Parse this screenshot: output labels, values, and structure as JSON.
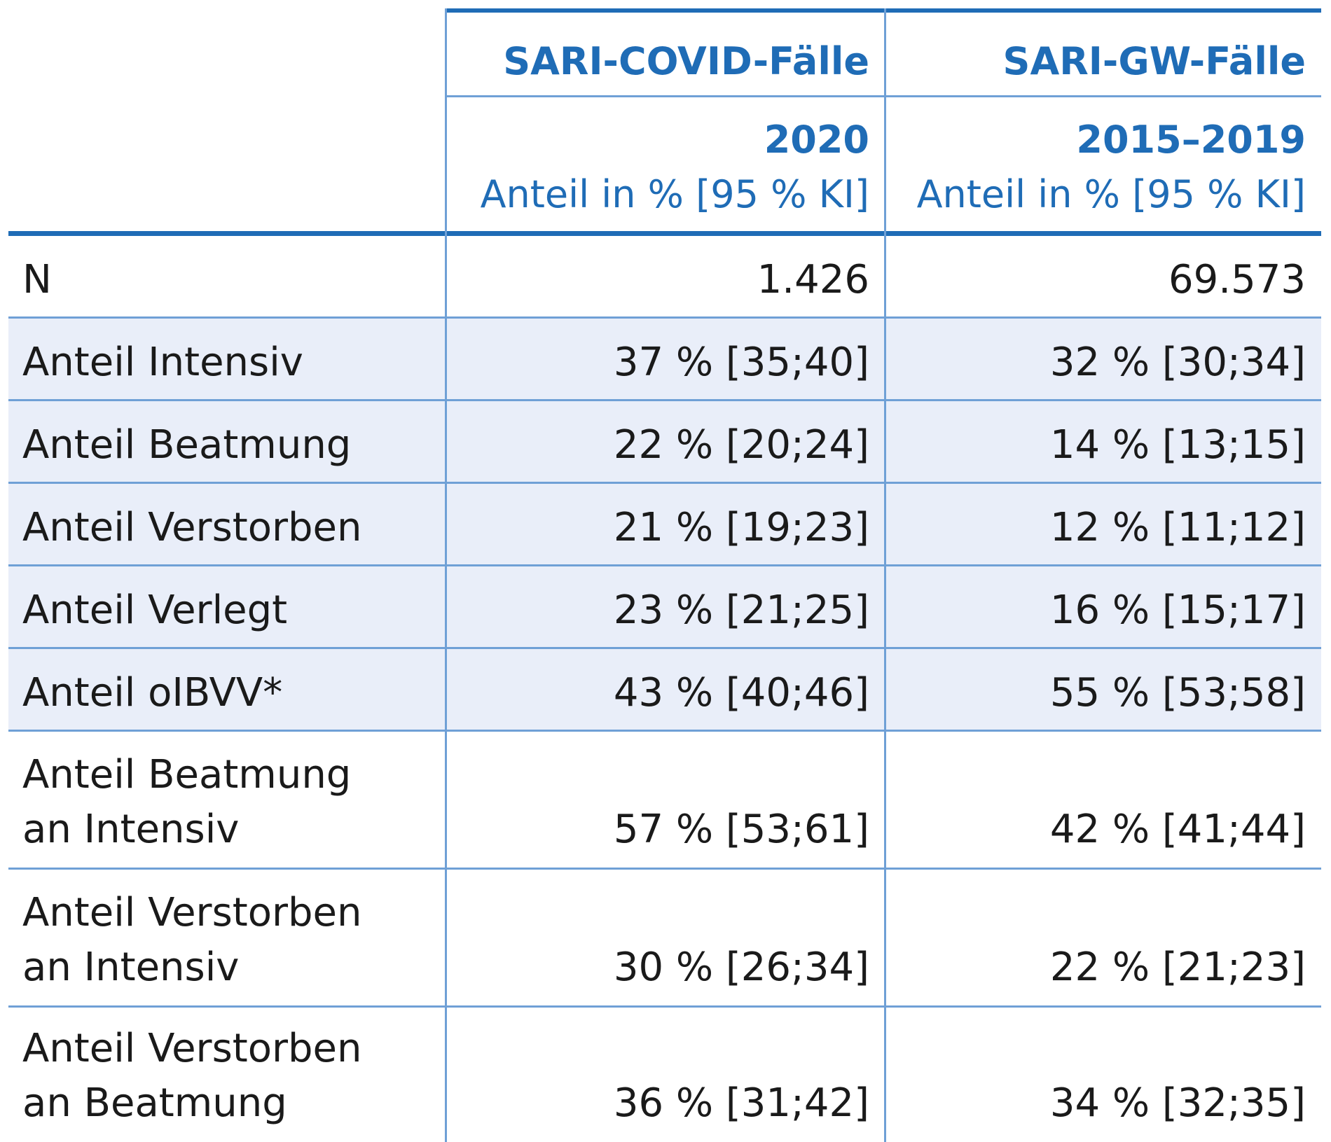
{
  "header": {
    "col1_title": "SARI-COVID-Fälle",
    "col2_title": "SARI-GW-Fälle",
    "col1_year": "2020",
    "col2_year": "2015–2019",
    "col1_share": "Anteil in % [95 % KI]",
    "col2_share": "Anteil in % [95 % KI]"
  },
  "rows": [
    {
      "label_line1": "N",
      "label_line2": "",
      "c1": "1.426",
      "c2": "69.573"
    },
    {
      "label_line1": "Anteil Intensiv",
      "label_line2": "",
      "c1": "37 % [35;40]",
      "c2": "32 % [30;34]"
    },
    {
      "label_line1": "Anteil Beatmung",
      "label_line2": "",
      "c1": "22 % [20;24]",
      "c2": "14 % [13;15]"
    },
    {
      "label_line1": "Anteil Verstorben",
      "label_line2": "",
      "c1": "21 % [19;23]",
      "c2": "12 % [11;12]"
    },
    {
      "label_line1": "Anteil Verlegt",
      "label_line2": "",
      "c1": "23 % [21;25]",
      "c2": "16 % [15;17]"
    },
    {
      "label_line1": "Anteil oIBVV*",
      "label_line2": "",
      "c1": "43 % [40;46]",
      "c2": "55 % [53;58]"
    },
    {
      "label_line1": "Anteil Beatmung",
      "label_line2": "an Intensiv",
      "c1": "57 % [53;61]",
      "c2": "42 % [41;44]"
    },
    {
      "label_line1": "Anteil Verstorben",
      "label_line2": "an Intensiv",
      "c1": "30 % [26;34]",
      "c2": "22 % [21;23]"
    },
    {
      "label_line1": "Anteil Verstorben",
      "label_line2": "an Beatmung",
      "c1": "36 % [31;42]",
      "c2": "34 % [32;35]"
    }
  ],
  "colors": {
    "accent": "#1f6cb6",
    "rule_light": "#6fa0d6",
    "row_shade": "#e9eef9"
  }
}
